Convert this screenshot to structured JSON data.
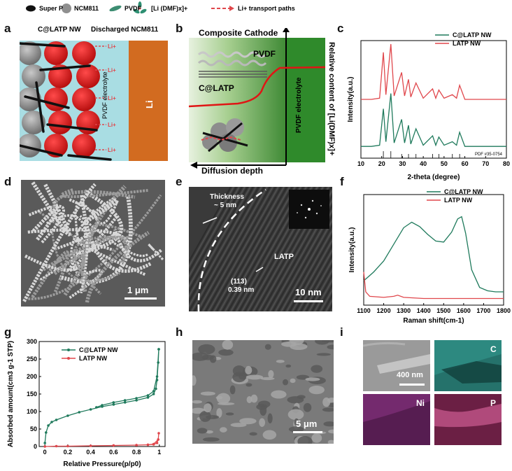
{
  "legend": {
    "super_p": "Super P",
    "ncm811": "NCM811",
    "pvdf": "PVDF",
    "li_dmf": "[Li (DMF)x]+",
    "li_paths": "Li+ transport paths",
    "c_latp": "C@LATP NW",
    "discharged": "Discharged NCM811"
  },
  "panel_labels": [
    "a",
    "b",
    "c",
    "d",
    "e",
    "f",
    "g",
    "h",
    "i"
  ],
  "panel_a": {
    "electrolyte": "PVDF electrolyte",
    "li_metal": "Li",
    "li_ion": "Li+"
  },
  "panel_b": {
    "title": "Composite Cathode",
    "pvdf": "PVDF",
    "c_latp": "C@LATP",
    "electrolyte": "PVDF electrolyte",
    "xlabel": "Diffusion depth",
    "ylabel": "Relative content of [Li(DMF)x]+"
  },
  "panel_d": {
    "scale": "1 μm"
  },
  "panel_e": {
    "thickness": "Thickness",
    "thickness_val": "~ 5 nm",
    "latp": "LATP",
    "plane": "(113)",
    "dspacing": "0.39 nm",
    "scale": "10 nm"
  },
  "panel_h": {
    "scale": "5 μm"
  },
  "panel_i": {
    "scale": "400 nm",
    "c": "C",
    "ni": "Ni",
    "p": "P"
  },
  "colors": {
    "green": "#1f7a5c",
    "red": "#e0474c",
    "scalebar": "#ffffff"
  },
  "chart_data": [
    {
      "panel": "c",
      "type": "line",
      "title": "",
      "xlabel": "2-theta (degree)",
      "ylabel": "Intensity(a.u.)",
      "xlim": [
        10,
        80
      ],
      "xticks": [
        10,
        20,
        30,
        40,
        50,
        60,
        70,
        80
      ],
      "annotation": "PDF #35-0754",
      "reference_peaks": [
        20.8,
        24.4,
        29.6,
        32.9,
        36.5,
        44.5,
        47.5,
        54.0,
        57.5
      ],
      "series": [
        {
          "name": "C@LATP NW",
          "color": "#1f7a5c",
          "x": [
            10,
            15,
            19,
            20.8,
            22,
            24.4,
            26,
            29.6,
            31,
            32.9,
            34,
            36.5,
            40,
            44.5,
            46,
            47.5,
            50,
            54,
            56,
            57.5,
            60,
            70,
            80
          ],
          "y": [
            0.1,
            0.1,
            0.11,
            0.42,
            0.14,
            0.55,
            0.13,
            0.33,
            0.13,
            0.28,
            0.12,
            0.25,
            0.11,
            0.19,
            0.11,
            0.18,
            0.11,
            0.14,
            0.11,
            0.22,
            0.1,
            0.1,
            0.1
          ]
        },
        {
          "name": "LATP NW",
          "color": "#e0474c",
          "x": [
            10,
            15,
            19,
            20.8,
            22,
            24.4,
            26,
            29.6,
            31,
            32.9,
            34,
            36.5,
            40,
            44.5,
            46,
            47.5,
            50,
            54,
            56,
            57.5,
            60,
            70,
            80
          ],
          "y": [
            0.5,
            0.5,
            0.51,
            0.9,
            0.54,
            0.97,
            0.53,
            0.73,
            0.53,
            0.67,
            0.52,
            0.64,
            0.51,
            0.59,
            0.51,
            0.58,
            0.51,
            0.54,
            0.51,
            0.62,
            0.5,
            0.5,
            0.5
          ]
        }
      ]
    },
    {
      "panel": "f",
      "type": "line",
      "title": "",
      "xlabel": "Raman shift(cm-1)",
      "ylabel": "Intensity(a.u.)",
      "xlim": [
        1100,
        1800
      ],
      "xticks": [
        1100,
        1200,
        1300,
        1400,
        1500,
        1600,
        1700,
        1800
      ],
      "series": [
        {
          "name": "C@LATP NW",
          "color": "#1f7a5c",
          "x": [
            1100,
            1150,
            1200,
            1250,
            1300,
            1340,
            1380,
            1420,
            1460,
            1500,
            1540,
            1570,
            1590,
            1610,
            1640,
            1680,
            1720,
            1760,
            1800
          ],
          "y": [
            0.22,
            0.3,
            0.4,
            0.55,
            0.7,
            0.75,
            0.71,
            0.64,
            0.58,
            0.57,
            0.66,
            0.78,
            0.8,
            0.65,
            0.32,
            0.16,
            0.13,
            0.12,
            0.12
          ]
        },
        {
          "name": "LATP NW",
          "color": "#e0474c",
          "x": [
            1100,
            1110,
            1130,
            1200,
            1250,
            1270,
            1300,
            1400,
            1500,
            1600,
            1700,
            1800
          ],
          "y": [
            0.3,
            0.12,
            0.08,
            0.07,
            0.08,
            0.09,
            0.07,
            0.06,
            0.06,
            0.06,
            0.06,
            0.06
          ]
        }
      ]
    },
    {
      "panel": "g",
      "type": "line",
      "title": "",
      "xlabel": "Relative Pressure(p/p0)",
      "ylabel": "Absorbed amount(cm3 g-1 STP)",
      "xlim": [
        -0.05,
        1.05
      ],
      "ylim": [
        0,
        300
      ],
      "xticks": [
        0.0,
        0.2,
        0.4,
        0.6,
        0.8,
        1.0
      ],
      "yticks": [
        0,
        50,
        100,
        150,
        200,
        250,
        300
      ],
      "series": [
        {
          "name": "C@LATP NW",
          "color": "#1f7a5c",
          "x": [
            0.0,
            0.01,
            0.03,
            0.06,
            0.1,
            0.2,
            0.3,
            0.4,
            0.5,
            0.6,
            0.7,
            0.8,
            0.9,
            0.95,
            0.97,
            0.98,
            0.99,
            0.995,
            0.995,
            0.98,
            0.95,
            0.9,
            0.8,
            0.7,
            0.6,
            0.5,
            0.45
          ],
          "y": [
            10,
            40,
            60,
            70,
            76,
            88,
            98,
            106,
            114,
            120,
            126,
            132,
            140,
            150,
            165,
            190,
            240,
            278,
            278,
            200,
            158,
            146,
            138,
            132,
            126,
            118,
            112
          ]
        },
        {
          "name": "LATP NW",
          "color": "#e0474c",
          "x": [
            0.0,
            0.1,
            0.2,
            0.4,
            0.6,
            0.8,
            0.9,
            0.95,
            0.98,
            0.99,
            0.995,
            0.99,
            0.95,
            0.9,
            0.8,
            0.6
          ],
          "y": [
            0,
            1,
            1,
            2,
            3,
            4,
            5,
            6,
            10,
            20,
            38,
            20,
            7,
            5,
            4,
            3
          ]
        }
      ]
    }
  ]
}
